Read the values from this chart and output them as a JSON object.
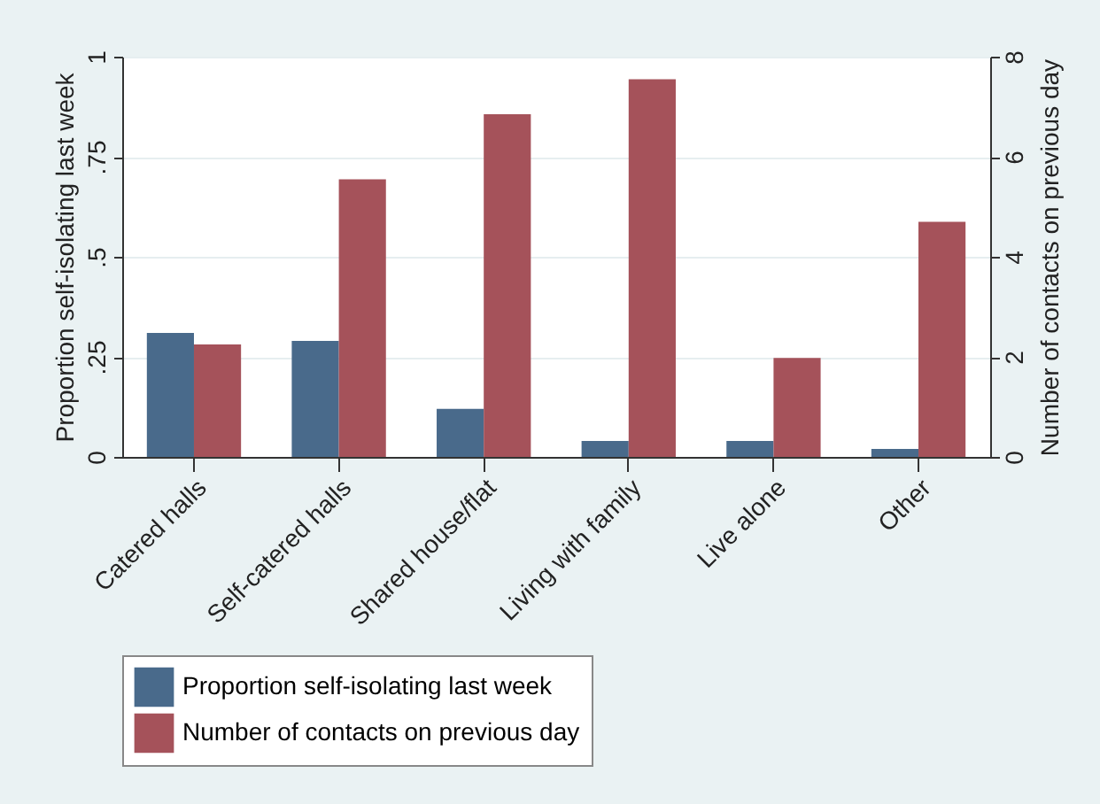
{
  "chart_data": {
    "type": "bar",
    "ylabel": "Proportion self-isolating last week",
    "y2label": "Number of contacts on previous day",
    "categories": [
      "Catered halls",
      "Self-catered halls",
      "Shared house/flat",
      "Living with family",
      "Live alone",
      "Other"
    ],
    "series": [
      {
        "name": "Proportion self-isolating last week",
        "color": "#496a8b",
        "values": [
          0.31,
          0.29,
          0.12,
          0.04,
          0.04,
          0.02
        ]
      },
      {
        "name": "Number of contacts on previous day",
        "color": "#a5525a",
        "axis": "y2",
        "values": [
          2.25,
          5.55,
          6.85,
          7.55,
          1.98,
          4.7
        ]
      }
    ],
    "ylim": [
      0,
      1
    ],
    "yticks": [
      0,
      {
        "value": 0.25,
        "label": ".25"
      },
      {
        "value": 0.5,
        "label": ".5"
      },
      {
        "value": 0.75,
        "label": ".75"
      },
      1
    ],
    "y2lim": [
      0,
      8
    ],
    "y2ticks": [
      0,
      2,
      4,
      6,
      8
    ],
    "grid": "y",
    "legend": "bottom"
  }
}
